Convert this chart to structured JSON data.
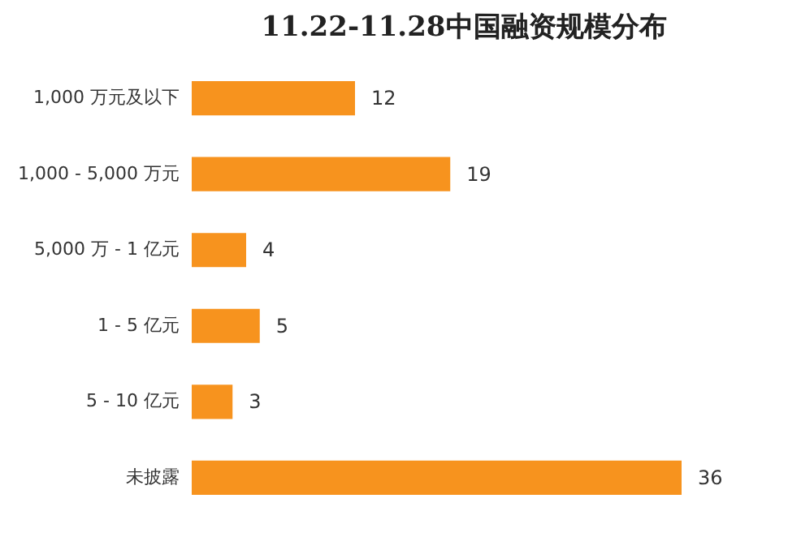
{
  "chart_data": {
    "type": "bar",
    "orientation": "horizontal",
    "title": "11.22-11.28中国融资规模分布",
    "categories": [
      "1,000 万元及以下",
      "1,000 - 5,000 万元",
      "5,000 万 - 1 亿元",
      "1 - 5 亿元",
      "5 - 10 亿元",
      "未披露"
    ],
    "values": [
      12,
      19,
      4,
      5,
      3,
      36
    ],
    "color": "#f7931e",
    "data_labels": true,
    "tick_labels": "y"
  }
}
